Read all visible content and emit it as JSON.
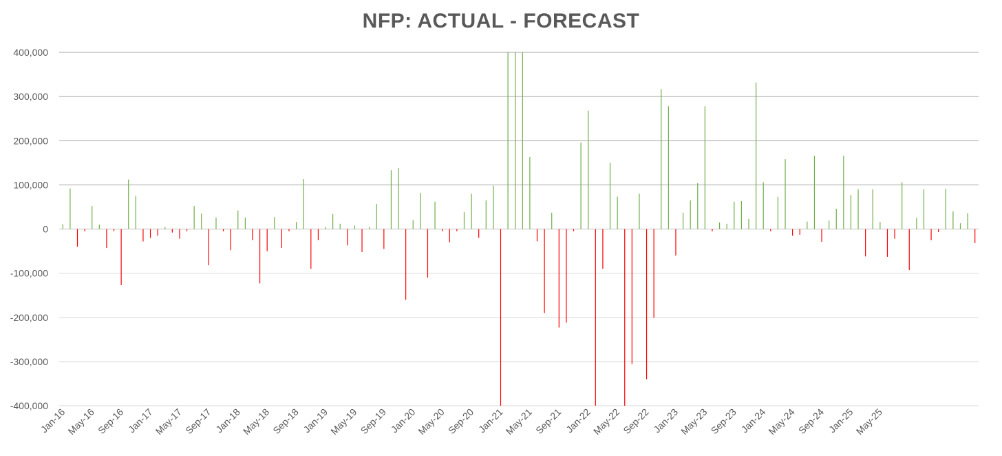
{
  "chart_data": {
    "type": "bar",
    "title": "NFP: ACTUAL - FORECAST",
    "xlabel": "",
    "ylabel": "",
    "ylim": [
      -400000,
      400000
    ],
    "yticks": [
      "400,000",
      "300,000",
      "200,000",
      "100,000",
      "0",
      "-100,000",
      "-200,000",
      "-300,000",
      "-400,000"
    ],
    "x_tick_labels": [
      "Jan-16",
      "May-16",
      "Sep-16",
      "Jan-17",
      "May-17",
      "Sep-17",
      "Jan-18",
      "May-18",
      "Sep-18",
      "Jan-19",
      "May-19",
      "Sep-19",
      "Jan-20",
      "May-20",
      "Sep-20",
      "Jan-21",
      "May-21",
      "Sep-21",
      "Jan-22",
      "May-22",
      "Sep-22",
      "Jan-23",
      "May-23",
      "Sep-23",
      "Jan-24",
      "May-24",
      "Sep-24",
      "Jan-25",
      "May-25"
    ],
    "x_start": "Jan-16",
    "positive_color": "#70ad47",
    "negative_color": "#ff0000",
    "grid": true,
    "legend": "none",
    "values": [
      11000,
      92000,
      -40000,
      -5000,
      52000,
      10000,
      -43000,
      -5000,
      -127000,
      112000,
      75000,
      -28000,
      -20000,
      -15000,
      5000,
      -8000,
      -22000,
      -5000,
      52000,
      35000,
      -82000,
      26000,
      -5000,
      -48000,
      42000,
      26000,
      -25000,
      -123000,
      -50000,
      27000,
      -43000,
      -5000,
      16000,
      113000,
      -90000,
      -25000,
      5000,
      34000,
      12000,
      -37000,
      8000,
      -52000,
      5000,
      57000,
      -45000,
      133000,
      138000,
      -160000,
      20000,
      82000,
      -110000,
      62000,
      -5000,
      -30000,
      -5000,
      38000,
      80000,
      -20000,
      65000,
      98000,
      -400000,
      400000,
      400000,
      400000,
      163000,
      -28000,
      -190000,
      37000,
      -223000,
      -212000,
      -5000,
      196000,
      268000,
      -400000,
      -90000,
      150000,
      73000,
      -400000,
      -305000,
      80000,
      -340000,
      -201000,
      317000,
      278000,
      -60000,
      37000,
      65000,
      104000,
      278000,
      -5000,
      15000,
      12000,
      62000,
      63000,
      23000,
      332000,
      106000,
      -5000,
      73000,
      158000,
      -15000,
      -13000,
      17000,
      166000,
      -29000,
      19000,
      46000,
      166000,
      77000,
      90000,
      -62000,
      90000,
      16000,
      -63000,
      -22000,
      106000,
      -93000,
      25000,
      90000,
      -25000,
      -7000,
      91000,
      40000,
      13000,
      36000,
      -32000
    ]
  }
}
